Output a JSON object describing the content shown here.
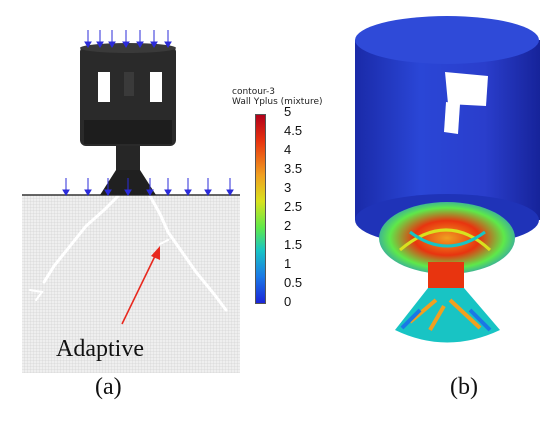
{
  "legend": {
    "title_line1": "contour-3",
    "title_line2": "Wall Yplus (mixture)",
    "ticks": [
      "5",
      "4.5",
      "4",
      "3.5",
      "3",
      "2.5",
      "2",
      "1.5",
      "1",
      "0.5",
      "0"
    ]
  },
  "annotation": "Adaptive",
  "panels": {
    "a": "(a)",
    "b": "(b)"
  },
  "colors": {
    "arrow": "#e8281e",
    "load_arrow": "#2b2bd9",
    "body_blue": "#2a3ecc"
  }
}
